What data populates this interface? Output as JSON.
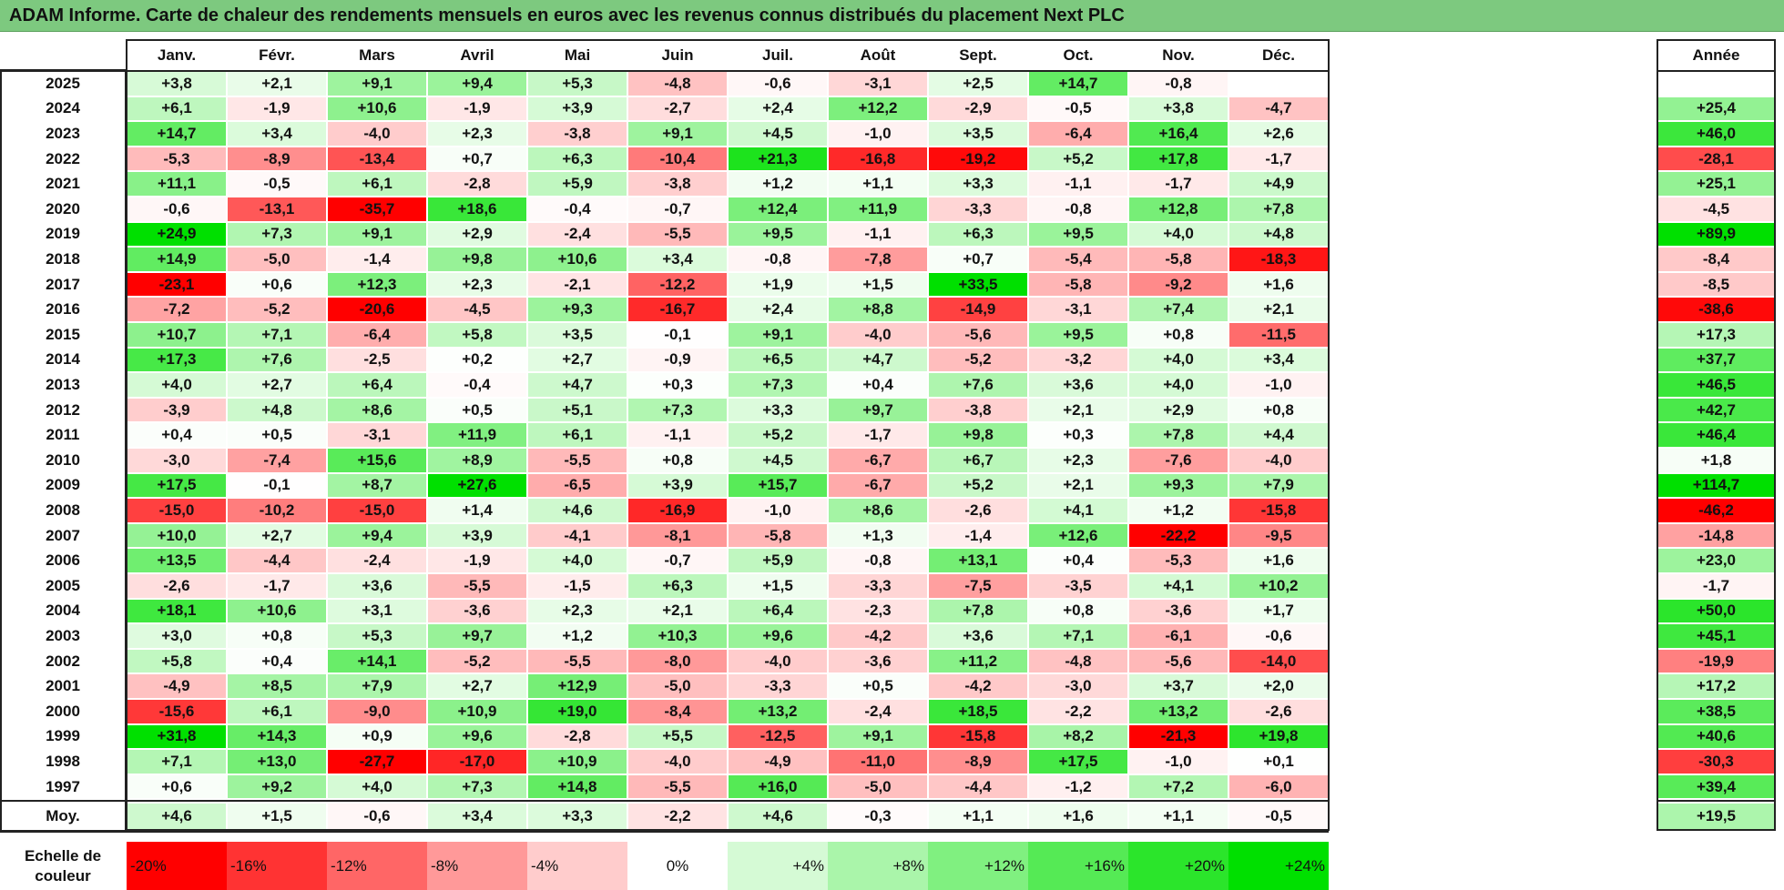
{
  "title": "ADAM Informe. Carte de chaleur des rendements mensuels en euros avec les revenus connus distribués du placement Next PLC",
  "chart_data": {
    "type": "heatmap",
    "title": "ADAM Informe. Carte de chaleur des rendements mensuels en euros avec les revenus connus distribués du placement Next PLC",
    "months": [
      "Janv.",
      "Févr.",
      "Mars",
      "Avril",
      "Mai",
      "Juin",
      "Juil.",
      "Août",
      "Sept.",
      "Oct.",
      "Nov.",
      "Déc."
    ],
    "year_column_label": "Année",
    "average_row_label": "Moy.",
    "rows": [
      {
        "year": "2025",
        "values": [
          "+3,8",
          "+2,1",
          "+9,1",
          "+9,4",
          "+5,3",
          "-4,8",
          "-0,6",
          "-3,1",
          "+2,5",
          "+14,7",
          "-0,8",
          ""
        ],
        "annual": ""
      },
      {
        "year": "2024",
        "values": [
          "+6,1",
          "-1,9",
          "+10,6",
          "-1,9",
          "+3,9",
          "-2,7",
          "+2,4",
          "+12,2",
          "-2,9",
          "-0,5",
          "+3,8",
          "-4,7"
        ],
        "annual": "+25,4"
      },
      {
        "year": "2023",
        "values": [
          "+14,7",
          "+3,4",
          "-4,0",
          "+2,3",
          "-3,8",
          "+9,1",
          "+4,5",
          "-1,0",
          "+3,5",
          "-6,4",
          "+16,4",
          "+2,6"
        ],
        "annual": "+46,0"
      },
      {
        "year": "2022",
        "values": [
          "-5,3",
          "-8,9",
          "-13,4",
          "+0,7",
          "+6,3",
          "-10,4",
          "+21,3",
          "-16,8",
          "-19,2",
          "+5,2",
          "+17,8",
          "-1,7"
        ],
        "annual": "-28,1"
      },
      {
        "year": "2021",
        "values": [
          "+11,1",
          "-0,5",
          "+6,1",
          "-2,8",
          "+5,9",
          "-3,8",
          "+1,2",
          "+1,1",
          "+3,3",
          "-1,1",
          "-1,7",
          "+4,9"
        ],
        "annual": "+25,1"
      },
      {
        "year": "2020",
        "values": [
          "-0,6",
          "-13,1",
          "-35,7",
          "+18,6",
          "-0,4",
          "-0,7",
          "+12,4",
          "+11,9",
          "-3,3",
          "-0,8",
          "+12,8",
          "+7,8"
        ],
        "annual": "-4,5"
      },
      {
        "year": "2019",
        "values": [
          "+24,9",
          "+7,3",
          "+9,1",
          "+2,9",
          "-2,4",
          "-5,5",
          "+9,5",
          "-1,1",
          "+6,3",
          "+9,5",
          "+4,0",
          "+4,8"
        ],
        "annual": "+89,9"
      },
      {
        "year": "2018",
        "values": [
          "+14,9",
          "-5,0",
          "-1,4",
          "+9,8",
          "+10,6",
          "+3,4",
          "-0,8",
          "-7,8",
          "+0,7",
          "-5,4",
          "-5,8",
          "-18,3"
        ],
        "annual": "-8,4"
      },
      {
        "year": "2017",
        "values": [
          "-23,1",
          "+0,6",
          "+12,3",
          "+2,3",
          "-2,1",
          "-12,2",
          "+1,9",
          "+1,5",
          "+33,5",
          "-5,8",
          "-9,2",
          "+1,6"
        ],
        "annual": "-8,5"
      },
      {
        "year": "2016",
        "values": [
          "-7,2",
          "-5,2",
          "-20,6",
          "-4,5",
          "+9,3",
          "-16,7",
          "+2,4",
          "+8,8",
          "-14,9",
          "-3,1",
          "+7,4",
          "+2,1"
        ],
        "annual": "-38,6"
      },
      {
        "year": "2015",
        "values": [
          "+10,7",
          "+7,1",
          "-6,4",
          "+5,8",
          "+3,5",
          "-0,1",
          "+9,1",
          "-4,0",
          "-5,6",
          "+9,5",
          "+0,8",
          "-11,5"
        ],
        "annual": "+17,3"
      },
      {
        "year": "2014",
        "values": [
          "+17,3",
          "+7,6",
          "-2,5",
          "+0,2",
          "+2,7",
          "-0,9",
          "+6,5",
          "+4,7",
          "-5,2",
          "-3,2",
          "+4,0",
          "+3,4"
        ],
        "annual": "+37,7"
      },
      {
        "year": "2013",
        "values": [
          "+4,0",
          "+2,7",
          "+6,4",
          "-0,4",
          "+4,7",
          "+0,3",
          "+7,3",
          "+0,4",
          "+7,6",
          "+3,6",
          "+4,0",
          "-1,0"
        ],
        "annual": "+46,5"
      },
      {
        "year": "2012",
        "values": [
          "-3,9",
          "+4,8",
          "+8,6",
          "+0,5",
          "+5,1",
          "+7,3",
          "+3,3",
          "+9,7",
          "-3,8",
          "+2,1",
          "+2,9",
          "+0,8"
        ],
        "annual": "+42,7"
      },
      {
        "year": "2011",
        "values": [
          "+0,4",
          "+0,5",
          "-3,1",
          "+11,9",
          "+6,1",
          "-1,1",
          "+5,2",
          "-1,7",
          "+9,8",
          "+0,3",
          "+7,8",
          "+4,4"
        ],
        "annual": "+46,4"
      },
      {
        "year": "2010",
        "values": [
          "-3,0",
          "-7,4",
          "+15,6",
          "+8,9",
          "-5,5",
          "+0,8",
          "+4,5",
          "-6,7",
          "+6,7",
          "+2,3",
          "-7,6",
          "-4,0"
        ],
        "annual": "+1,8"
      },
      {
        "year": "2009",
        "values": [
          "+17,5",
          "-0,1",
          "+8,7",
          "+27,6",
          "-6,5",
          "+3,9",
          "+15,7",
          "-6,7",
          "+5,2",
          "+2,1",
          "+9,3",
          "+7,9"
        ],
        "annual": "+114,7"
      },
      {
        "year": "2008",
        "values": [
          "-15,0",
          "-10,2",
          "-15,0",
          "+1,4",
          "+4,6",
          "-16,9",
          "-1,0",
          "+8,6",
          "-2,6",
          "+4,1",
          "+1,2",
          "-15,8"
        ],
        "annual": "-46,2"
      },
      {
        "year": "2007",
        "values": [
          "+10,0",
          "+2,7",
          "+9,4",
          "+3,9",
          "-4,1",
          "-8,1",
          "-5,8",
          "+1,3",
          "-1,4",
          "+12,6",
          "-22,2",
          "-9,5"
        ],
        "annual": "-14,8"
      },
      {
        "year": "2006",
        "values": [
          "+13,5",
          "-4,4",
          "-2,4",
          "-1,9",
          "+4,0",
          "-0,7",
          "+5,9",
          "-0,8",
          "+13,1",
          "+0,4",
          "-5,3",
          "+1,6"
        ],
        "annual": "+23,0"
      },
      {
        "year": "2005",
        "values": [
          "-2,6",
          "-1,7",
          "+3,6",
          "-5,5",
          "-1,5",
          "+6,3",
          "+1,5",
          "-3,3",
          "-7,5",
          "-3,5",
          "+4,1",
          "+10,2"
        ],
        "annual": "-1,7"
      },
      {
        "year": "2004",
        "values": [
          "+18,1",
          "+10,6",
          "+3,1",
          "-3,6",
          "+2,3",
          "+2,1",
          "+6,4",
          "-2,3",
          "+7,8",
          "+0,8",
          "-3,6",
          "+1,7"
        ],
        "annual": "+50,0"
      },
      {
        "year": "2003",
        "values": [
          "+3,0",
          "+0,8",
          "+5,3",
          "+9,7",
          "+1,2",
          "+10,3",
          "+9,6",
          "-4,2",
          "+3,6",
          "+7,1",
          "-6,1",
          "-0,6"
        ],
        "annual": "+45,1"
      },
      {
        "year": "2002",
        "values": [
          "+5,8",
          "+0,4",
          "+14,1",
          "-5,2",
          "-5,5",
          "-8,0",
          "-4,0",
          "-3,6",
          "+11,2",
          "-4,8",
          "-5,6",
          "-14,0"
        ],
        "annual": "-19,9"
      },
      {
        "year": "2001",
        "values": [
          "-4,9",
          "+8,5",
          "+7,9",
          "+2,7",
          "+12,9",
          "-5,0",
          "-3,3",
          "+0,5",
          "-4,2",
          "-3,0",
          "+3,7",
          "+2,0"
        ],
        "annual": "+17,2"
      },
      {
        "year": "2000",
        "values": [
          "-15,6",
          "+6,1",
          "-9,0",
          "+10,9",
          "+19,0",
          "-8,4",
          "+13,2",
          "-2,4",
          "+18,5",
          "-2,2",
          "+13,2",
          "-2,6"
        ],
        "annual": "+38,5"
      },
      {
        "year": "1999",
        "values": [
          "+31,8",
          "+14,3",
          "+0,9",
          "+9,6",
          "-2,8",
          "+5,5",
          "-12,5",
          "+9,1",
          "-15,8",
          "+8,2",
          "-21,3",
          "+19,8"
        ],
        "annual": "+40,6"
      },
      {
        "year": "1998",
        "values": [
          "+7,1",
          "+13,0",
          "-27,7",
          "-17,0",
          "+10,9",
          "-4,0",
          "-4,9",
          "-11,0",
          "-8,9",
          "+17,5",
          "-1,0",
          "+0,1"
        ],
        "annual": "-30,3"
      },
      {
        "year": "1997",
        "values": [
          "+0,6",
          "+9,2",
          "+4,0",
          "+7,3",
          "+14,8",
          "-5,5",
          "+16,0",
          "-5,0",
          "-4,4",
          "-1,2",
          "+7,2",
          "-6,0"
        ],
        "annual": "+39,4"
      }
    ],
    "averages": [
      "+4,6",
      "+1,5",
      "-0,6",
      "+3,4",
      "+3,3",
      "-2,2",
      "+4,6",
      "-0,3",
      "+1,1",
      "+1,6",
      "+1,1",
      "-0,5"
    ],
    "average_annual": "+19,5",
    "color_scale": {
      "label": "Echelle de couleur",
      "stops": [
        "-20%",
        "-16%",
        "-12%",
        "-8%",
        "-4%",
        "0%",
        "+4%",
        "+8%",
        "+12%",
        "+16%",
        "+20%",
        "+24%"
      ],
      "negative_color": "#ff0000",
      "neutral_color": "#ffffff",
      "positive_color": "#00e000",
      "monthly_range": [
        -20,
        24
      ],
      "annual_range": [
        -40,
        60
      ]
    }
  }
}
